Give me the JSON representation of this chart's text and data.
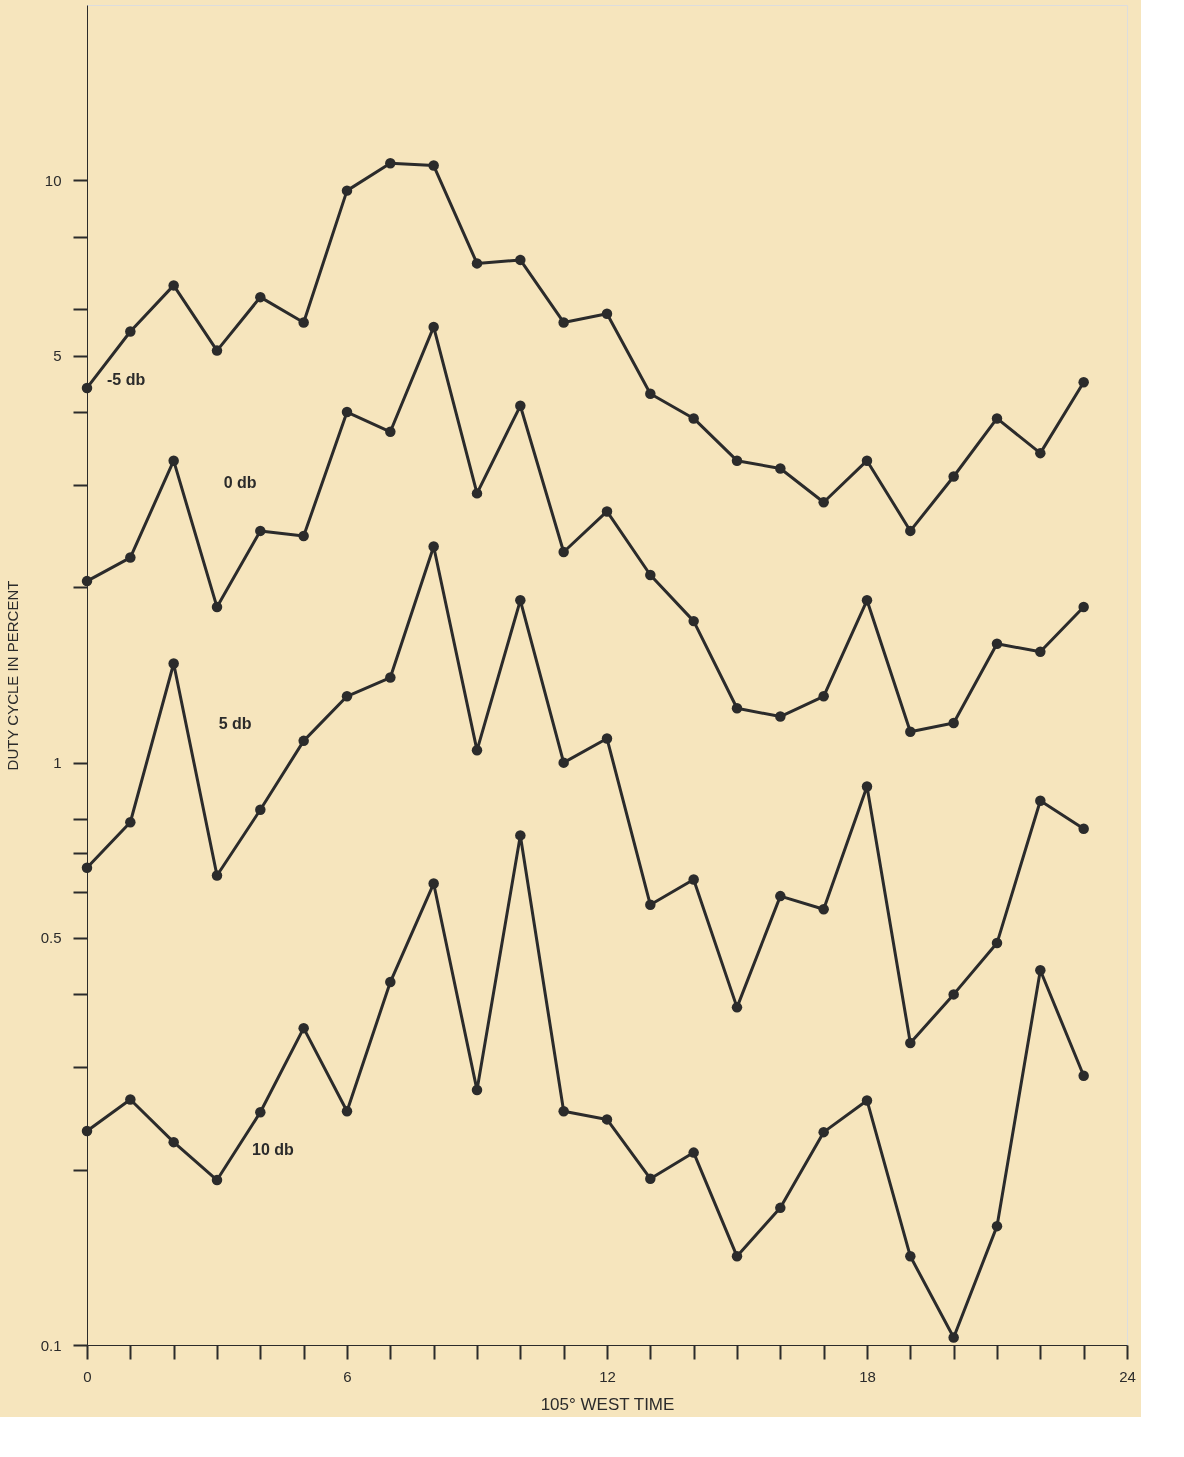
{
  "chart_data": {
    "type": "line",
    "xlabel": "105° WEST TIME",
    "ylabel": "DUTY CYCLE IN PERCENT",
    "x": [
      0,
      1,
      2,
      3,
      4,
      5,
      6,
      7,
      8,
      9,
      10,
      11,
      12,
      13,
      14,
      15,
      16,
      17,
      18,
      19,
      20,
      21,
      22,
      23
    ],
    "series": [
      {
        "name": "-5 db",
        "color": "#2b2b2b",
        "values": [
          4.4,
          5.5,
          6.6,
          5.1,
          6.3,
          5.7,
          9.6,
          10.7,
          10.6,
          7.2,
          7.3,
          5.7,
          5.9,
          4.3,
          3.9,
          3.3,
          3.2,
          2.8,
          3.3,
          2.5,
          3.1,
          3.9,
          3.4,
          4.5
        ]
      },
      {
        "name": "0 db",
        "color": "#2b2b2b",
        "values": [
          2.05,
          2.25,
          3.3,
          1.85,
          2.5,
          2.45,
          4.0,
          3.7,
          5.6,
          2.9,
          4.1,
          2.3,
          2.7,
          2.1,
          1.75,
          1.24,
          1.2,
          1.3,
          1.9,
          1.13,
          1.17,
          1.6,
          1.55,
          1.85
        ]
      },
      {
        "name": "5 db",
        "color": "#2b2b2b",
        "values": [
          0.66,
          0.79,
          1.48,
          0.64,
          0.83,
          1.09,
          1.3,
          1.4,
          2.35,
          1.05,
          1.9,
          1.0,
          1.1,
          0.57,
          0.63,
          0.38,
          0.59,
          0.56,
          0.91,
          0.33,
          0.4,
          0.49,
          0.86,
          0.77
        ]
      },
      {
        "name": "10 db",
        "color": "#2b2b2b",
        "values": [
          0.233,
          0.264,
          0.223,
          0.192,
          0.251,
          0.35,
          0.252,
          0.42,
          0.62,
          0.274,
          0.75,
          0.252,
          0.244,
          0.193,
          0.214,
          0.142,
          0.172,
          0.232,
          0.263,
          0.142,
          0.103,
          0.16,
          0.44,
          0.29
        ]
      }
    ],
    "log": "y",
    "grid": false,
    "legend": false,
    "marker": "circle",
    "line_style": "solid",
    "xlim": [
      0,
      24
    ],
    "xticks": [
      0,
      {
        "value": 1,
        "label": null
      },
      {
        "value": 2,
        "label": null
      },
      {
        "value": 3,
        "label": null
      },
      {
        "value": 4,
        "label": null
      },
      {
        "value": 5,
        "label": null
      },
      6,
      {
        "value": 7,
        "label": null
      },
      {
        "value": 8,
        "label": null
      },
      {
        "value": 9,
        "label": null
      },
      {
        "value": 10,
        "label": null
      },
      {
        "value": 11,
        "label": null
      },
      12,
      {
        "value": 13,
        "label": null
      },
      {
        "value": 14,
        "label": null
      },
      {
        "value": 15,
        "label": null
      },
      {
        "value": 16,
        "label": null
      },
      {
        "value": 17,
        "label": null
      },
      18,
      {
        "value": 19,
        "label": null
      },
      {
        "value": 20,
        "label": null
      },
      {
        "value": 21,
        "label": null
      },
      {
        "value": 22,
        "label": null
      },
      {
        "value": 23,
        "label": null
      },
      24
    ],
    "ylim": [
      0.1,
      20
    ],
    "yticks": [
      0.1,
      {
        "value": 0.2,
        "label": null
      },
      {
        "value": 0.3,
        "label": null
      },
      {
        "value": 0.4,
        "label": null
      },
      0.5,
      {
        "value": 0.6,
        "label": null
      },
      {
        "value": 0.7,
        "label": null
      },
      {
        "value": 0.8,
        "label": null
      },
      1,
      {
        "value": 2,
        "label": null
      },
      {
        "value": 3,
        "label": null
      },
      {
        "value": 4,
        "label": null
      },
      5,
      {
        "value": 6,
        "label": null
      },
      {
        "value": 8,
        "label": null
      },
      10
    ]
  }
}
